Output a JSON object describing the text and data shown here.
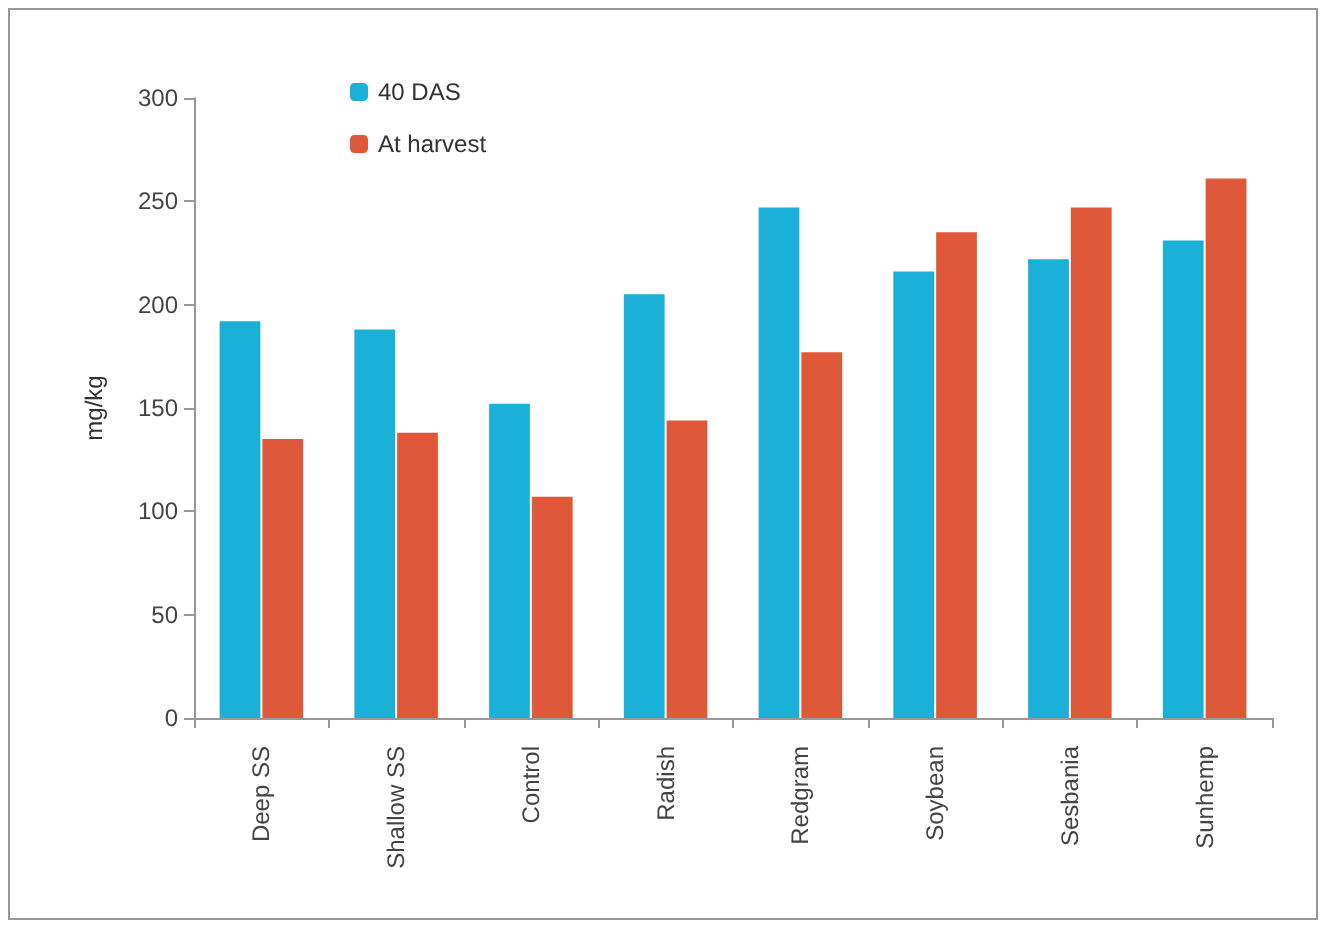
{
  "chart_data": {
    "type": "bar",
    "ylabel": "mg/kg",
    "categories": [
      "Deep SS",
      "Shallow SS",
      "Control",
      "Radish",
      "Redgram",
      "Soybean",
      "Sesbania",
      "Sunhemp"
    ],
    "series": [
      {
        "name": "40 DAS",
        "color": "#1ab0d8",
        "values": [
          192,
          188,
          152,
          205,
          247,
          216,
          222,
          231
        ]
      },
      {
        "name": "At harvest",
        "color": "#e0583a",
        "values": [
          135,
          138,
          107,
          144,
          177,
          235,
          247,
          261
        ]
      }
    ],
    "ylim": [
      0,
      300
    ],
    "yticks": [
      0,
      50,
      100,
      150,
      200,
      250,
      300
    ],
    "grid": false,
    "legend": "top left"
  }
}
